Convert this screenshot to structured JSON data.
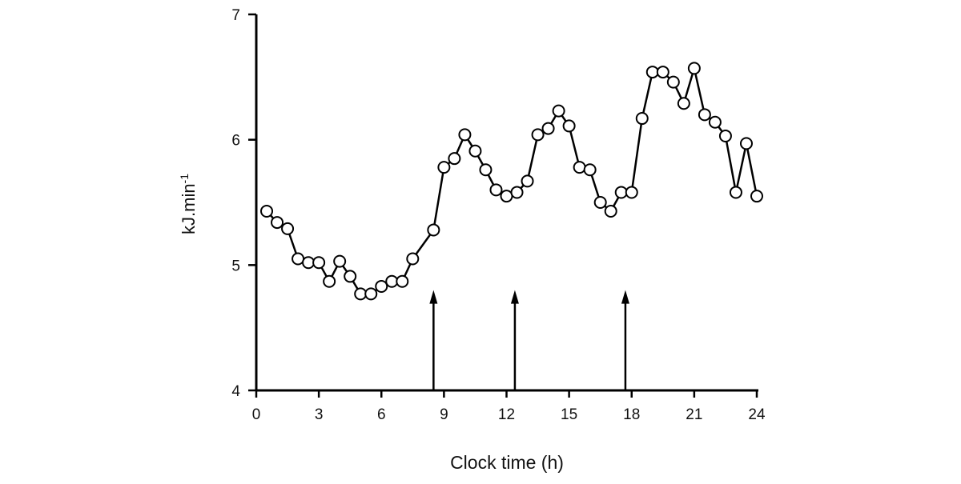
{
  "chart_data": {
    "type": "line",
    "title": "",
    "xlabel": "Clock time (h)",
    "ylabel": "kJ.min",
    "ylabel_superscript": "-1",
    "xlim": [
      0,
      24
    ],
    "ylim": [
      4,
      7
    ],
    "xticks": [
      0,
      3,
      6,
      9,
      12,
      15,
      18,
      21,
      24
    ],
    "yticks": [
      4,
      5,
      6,
      7
    ],
    "grid": false,
    "marker": "open-circle",
    "line_color": "#000000",
    "x": [
      0.5,
      1,
      1.5,
      2,
      2.5,
      3,
      3.5,
      4,
      4.5,
      5,
      5.5,
      6,
      6.5,
      7,
      7.5,
      8.5,
      9,
      9.5,
      10,
      10.5,
      11,
      11.5,
      12,
      12.5,
      13,
      13.5,
      14,
      14.5,
      15,
      15.5,
      16,
      16.5,
      17,
      17.5,
      18,
      18.5,
      19,
      19.5,
      20,
      20.5,
      21,
      21.5,
      22,
      22.5,
      23,
      23.5,
      24
    ],
    "y": [
      5.43,
      5.34,
      5.29,
      5.05,
      5.02,
      5.02,
      4.87,
      5.03,
      4.91,
      4.77,
      4.77,
      4.83,
      4.87,
      4.87,
      5.05,
      5.28,
      5.78,
      5.85,
      6.04,
      5.91,
      5.76,
      5.6,
      5.55,
      5.58,
      5.67,
      6.04,
      6.09,
      6.23,
      6.11,
      5.78,
      5.76,
      5.5,
      5.43,
      5.58,
      5.58,
      6.17,
      6.54,
      6.54,
      6.46,
      6.29,
      6.57,
      6.2,
      6.14,
      6.03,
      5.58,
      5.97,
      5.55
    ],
    "annotations": [
      {
        "type": "arrow",
        "x": 8.5,
        "y_from": 4,
        "y_to": 4.8
      },
      {
        "type": "arrow",
        "x": 12.4,
        "y_from": 4,
        "y_to": 4.8
      },
      {
        "type": "arrow",
        "x": 17.7,
        "y_from": 4,
        "y_to": 4.8
      }
    ]
  }
}
